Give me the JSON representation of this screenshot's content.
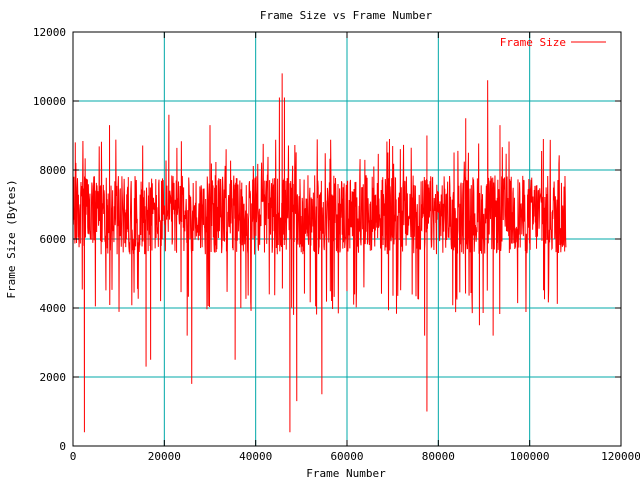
{
  "chart_data": {
    "type": "line",
    "title": "Frame Size vs Frame Number",
    "xlabel": "Frame Number",
    "ylabel": "Frame Size (Bytes)",
    "xlim": [
      0,
      120000
    ],
    "ylim": [
      0,
      12000
    ],
    "x_ticks": [
      0,
      20000,
      40000,
      60000,
      80000,
      100000,
      120000
    ],
    "y_ticks": [
      0,
      2000,
      4000,
      6000,
      8000,
      10000,
      12000
    ],
    "x_tick_labels": [
      "0",
      "20000",
      "40000",
      "60000",
      "80000",
      "100000",
      "120000"
    ],
    "y_tick_labels": [
      "0",
      "2000",
      "4000",
      "6000",
      "8000",
      "10000",
      "12000"
    ],
    "grid": true,
    "grid_color": "#00a8a8",
    "legend_position": "top-right",
    "series": [
      {
        "name": "Frame Size",
        "color": "#ff0000",
        "x_range": [
          0,
          108000
        ],
        "baseline": 6700,
        "typical_band": [
          5800,
          7800
        ],
        "peaks": [
          {
            "x": 500,
            "y": 8800
          },
          {
            "x": 8000,
            "y": 9300
          },
          {
            "x": 21000,
            "y": 9600
          },
          {
            "x": 30000,
            "y": 9300
          },
          {
            "x": 45200,
            "y": 10100
          },
          {
            "x": 45800,
            "y": 10800
          },
          {
            "x": 46300,
            "y": 10100
          },
          {
            "x": 77500,
            "y": 9000
          },
          {
            "x": 86000,
            "y": 9500
          },
          {
            "x": 90800,
            "y": 10600
          },
          {
            "x": 93500,
            "y": 9300
          },
          {
            "x": 103000,
            "y": 8900
          }
        ],
        "dips": [
          {
            "x": 0,
            "y": 300
          },
          {
            "x": 2500,
            "y": 400
          },
          {
            "x": 16000,
            "y": 2300
          },
          {
            "x": 17000,
            "y": 2500
          },
          {
            "x": 26000,
            "y": 1800
          },
          {
            "x": 25000,
            "y": 3200
          },
          {
            "x": 35500,
            "y": 2500
          },
          {
            "x": 47500,
            "y": 400
          },
          {
            "x": 49000,
            "y": 1300
          },
          {
            "x": 54500,
            "y": 1500
          },
          {
            "x": 77500,
            "y": 1000
          },
          {
            "x": 77000,
            "y": 3200
          },
          {
            "x": 92000,
            "y": 3200
          },
          {
            "x": 89000,
            "y": 3500
          }
        ]
      }
    ]
  }
}
